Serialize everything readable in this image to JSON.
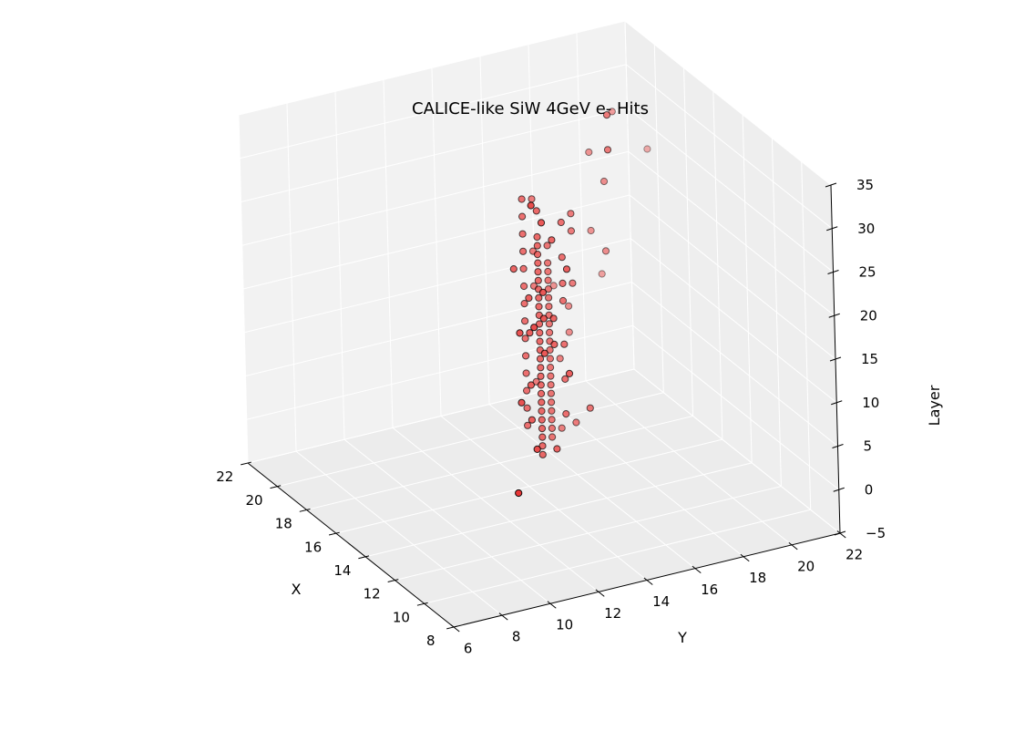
{
  "chart_data": {
    "type": "scatter",
    "title": "CALICE-like SiW 4GeV e- Hits",
    "xlabel": "X",
    "ylabel": "Y",
    "zlabel": "Layer",
    "xlim": [
      8,
      22
    ],
    "ylim": [
      6,
      22
    ],
    "zlim": [
      -5,
      35
    ],
    "x_ticks": [
      "8",
      "10",
      "12",
      "14",
      "16",
      "18",
      "20",
      "22"
    ],
    "y_ticks": [
      "6",
      "8",
      "10",
      "12",
      "14",
      "16",
      "18",
      "20",
      "22"
    ],
    "z_ticks": [
      "−5",
      "0",
      "5",
      "10",
      "15",
      "20",
      "25",
      "30",
      "35"
    ],
    "grid": true,
    "marker_color": "#e8302f",
    "points": [
      {
        "x": 15,
        "y": 14,
        "z": 0
      },
      {
        "x": 15,
        "y": 14,
        "z": 1
      },
      {
        "x": 15,
        "y": 14,
        "z": 2
      },
      {
        "x": 15,
        "y": 14,
        "z": 3
      },
      {
        "x": 15,
        "y": 14,
        "z": 4
      },
      {
        "x": 15,
        "y": 14,
        "z": 5
      },
      {
        "x": 15,
        "y": 14,
        "z": 6
      },
      {
        "x": 15,
        "y": 14,
        "z": 7
      },
      {
        "x": 15,
        "y": 14,
        "z": 8
      },
      {
        "x": 15,
        "y": 14,
        "z": 9
      },
      {
        "x": 15,
        "y": 14,
        "z": 10
      },
      {
        "x": 15,
        "y": 14,
        "z": 11
      },
      {
        "x": 15,
        "y": 14,
        "z": 12
      },
      {
        "x": 15,
        "y": 14,
        "z": 13
      },
      {
        "x": 15,
        "y": 14,
        "z": 14
      },
      {
        "x": 15,
        "y": 14,
        "z": 15
      },
      {
        "x": 15,
        "y": 14,
        "z": 16
      },
      {
        "x": 15,
        "y": 14,
        "z": 17
      },
      {
        "x": 15,
        "y": 14,
        "z": 18
      },
      {
        "x": 15,
        "y": 14,
        "z": 19
      },
      {
        "x": 15,
        "y": 14,
        "z": 20
      },
      {
        "x": 15,
        "y": 14,
        "z": 21
      },
      {
        "x": 15,
        "y": 14,
        "z": 22
      },
      {
        "x": 15,
        "y": 14,
        "z": 23
      },
      {
        "x": 15,
        "y": 14,
        "z": 24
      },
      {
        "x": 15,
        "y": 14,
        "z": 25
      },
      {
        "x": 16,
        "y": 15,
        "z": 0
      },
      {
        "x": 16,
        "y": 15,
        "z": 1
      },
      {
        "x": 16,
        "y": 15,
        "z": 2
      },
      {
        "x": 16,
        "y": 15,
        "z": 3
      },
      {
        "x": 16,
        "y": 15,
        "z": 4
      },
      {
        "x": 16,
        "y": 15,
        "z": 5
      },
      {
        "x": 16,
        "y": 15,
        "z": 6
      },
      {
        "x": 16,
        "y": 15,
        "z": 7
      },
      {
        "x": 16,
        "y": 15,
        "z": 8
      },
      {
        "x": 16,
        "y": 15,
        "z": 9
      },
      {
        "x": 16,
        "y": 15,
        "z": 10
      },
      {
        "x": 16,
        "y": 15,
        "z": 11
      },
      {
        "x": 16,
        "y": 15,
        "z": 12
      },
      {
        "x": 16,
        "y": 15,
        "z": 13
      },
      {
        "x": 16,
        "y": 15,
        "z": 14
      },
      {
        "x": 16,
        "y": 15,
        "z": 15
      },
      {
        "x": 16,
        "y": 15,
        "z": 16
      },
      {
        "x": 16,
        "y": 15,
        "z": 17
      },
      {
        "x": 16,
        "y": 15,
        "z": 18
      },
      {
        "x": 16,
        "y": 15,
        "z": 19
      },
      {
        "x": 16,
        "y": 15,
        "z": 20
      },
      {
        "x": 16,
        "y": 14,
        "z": 2
      },
      {
        "x": 16,
        "y": 14,
        "z": 4
      },
      {
        "x": 16,
        "y": 14,
        "z": 6
      },
      {
        "x": 16,
        "y": 14,
        "z": 8
      },
      {
        "x": 16,
        "y": 14,
        "z": 10
      },
      {
        "x": 16,
        "y": 14,
        "z": 12
      },
      {
        "x": 16,
        "y": 14,
        "z": 14
      },
      {
        "x": 16,
        "y": 14,
        "z": 16
      },
      {
        "x": 16,
        "y": 14,
        "z": 18
      },
      {
        "x": 16,
        "y": 14,
        "z": 20
      },
      {
        "x": 16,
        "y": 14,
        "z": 22
      },
      {
        "x": 16,
        "y": 14,
        "z": 24
      },
      {
        "x": 16,
        "y": 14,
        "z": 26
      },
      {
        "x": 16,
        "y": 14,
        "z": 28
      },
      {
        "x": 15,
        "y": 15,
        "z": 4
      },
      {
        "x": 15,
        "y": 15,
        "z": 8
      },
      {
        "x": 15,
        "y": 15,
        "z": 12
      },
      {
        "x": 15,
        "y": 15,
        "z": 17
      },
      {
        "x": 15,
        "y": 15,
        "z": 22
      },
      {
        "x": 14,
        "y": 14,
        "z": 14
      },
      {
        "x": 14,
        "y": 13,
        "z": 16
      },
      {
        "x": 14,
        "y": 13,
        "z": 20
      },
      {
        "x": 15,
        "y": 13,
        "z": 22
      },
      {
        "x": 14,
        "y": 14,
        "z": 26
      },
      {
        "x": 15,
        "y": 14,
        "z": 28
      },
      {
        "x": 15,
        "y": 15,
        "z": 26
      },
      {
        "x": 17,
        "y": 15,
        "z": 5
      },
      {
        "x": 17,
        "y": 16,
        "z": 7
      },
      {
        "x": 17,
        "y": 15,
        "z": 16
      },
      {
        "x": 17,
        "y": 15,
        "z": 20
      },
      {
        "x": 16,
        "y": 16,
        "z": 23
      },
      {
        "x": 17,
        "y": 15,
        "z": 26
      },
      {
        "x": 16,
        "y": 16,
        "z": 25
      },
      {
        "x": 14,
        "y": 13,
        "z": 10
      },
      {
        "x": 14,
        "y": 13,
        "z": 6
      },
      {
        "x": 14,
        "y": 14,
        "z": 2
      },
      {
        "x": 13,
        "y": 13,
        "z": 22
      },
      {
        "x": 13,
        "y": 14,
        "z": 24
      },
      {
        "x": 14,
        "y": 14,
        "z": 17
      },
      {
        "x": 15,
        "y": 16,
        "z": 4
      },
      {
        "x": 16,
        "y": 16,
        "z": 1
      },
      {
        "x": 17,
        "y": 16,
        "z": -1
      },
      {
        "x": 16,
        "y": 15,
        "z": 22
      },
      {
        "x": 15,
        "y": 15,
        "z": 19
      },
      {
        "x": 16,
        "y": 16,
        "z": 17
      },
      {
        "x": 12,
        "y": 12,
        "z": 34
      },
      {
        "x": 13,
        "y": 13,
        "z": 30
      },
      {
        "x": 10,
        "y": 10,
        "z": 5
      },
      {
        "x": 15,
        "y": 17,
        "z": 37
      },
      {
        "x": 18,
        "y": 18,
        "z": 28
      },
      {
        "x": 18,
        "y": 19,
        "z": 32
      },
      {
        "x": 17,
        "y": 18,
        "z": 26
      },
      {
        "x": 19,
        "y": 19,
        "z": 12
      },
      {
        "x": 17,
        "y": 18,
        "z": 18
      },
      {
        "x": 18,
        "y": 18,
        "z": 19
      },
      {
        "x": 15,
        "y": 17,
        "z": 33
      },
      {
        "x": 18,
        "y": 17,
        "z": 8
      },
      {
        "x": 18,
        "y": 17,
        "z": 11
      },
      {
        "x": 19,
        "y": 17,
        "z": 12
      },
      {
        "x": 13,
        "y": 13,
        "z": 19
      },
      {
        "x": 12,
        "y": 12,
        "z": 6
      },
      {
        "x": 13,
        "y": 12,
        "z": 18
      },
      {
        "x": 13,
        "y": 12,
        "z": 10
      },
      {
        "x": 19,
        "y": 21,
        "z": 25
      },
      {
        "x": 13,
        "y": 13,
        "z": 15
      },
      {
        "x": 12,
        "y": 12,
        "z": 20
      },
      {
        "x": 13,
        "y": 14,
        "z": 12
      }
    ]
  }
}
